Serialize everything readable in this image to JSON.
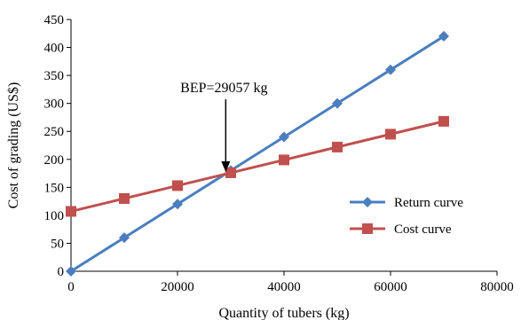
{
  "chart_data": {
    "type": "line",
    "title": "",
    "xlabel": "Quantity of tubers (kg)",
    "ylabel": "Cost of grading (US$)",
    "xlim": [
      0,
      80000
    ],
    "ylim": [
      0,
      450
    ],
    "xticks": [
      0,
      20000,
      40000,
      60000,
      80000
    ],
    "yticks": [
      0,
      50,
      100,
      150,
      200,
      250,
      300,
      350,
      400,
      450
    ],
    "grid": false,
    "legend_position": "right",
    "series": [
      {
        "name": "Return curve",
        "color": "#4a7ebf",
        "marker": "diamond",
        "x": [
          0,
          10000,
          20000,
          30000,
          40000,
          50000,
          60000,
          70000
        ],
        "y": [
          0,
          60,
          120,
          180,
          240,
          300,
          360,
          420
        ]
      },
      {
        "name": "Cost curve",
        "color": "#c0504d",
        "marker": "square",
        "x": [
          0,
          10000,
          20000,
          30000,
          40000,
          50000,
          60000,
          70000
        ],
        "y": [
          107,
          130,
          153,
          176,
          199,
          222,
          245,
          268
        ]
      }
    ],
    "annotations": [
      {
        "text": "BEP=29057 kg",
        "x": 29057,
        "y": 174.3,
        "arrow": true
      }
    ]
  }
}
